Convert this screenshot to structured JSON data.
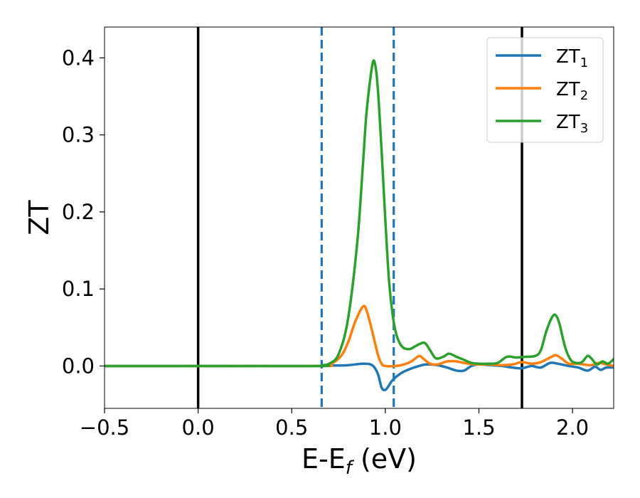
{
  "chart_data": {
    "type": "line",
    "title": "",
    "xlabel": {
      "main": "E-E",
      "sub": "f",
      "rest": " (eV)"
    },
    "ylabel": "ZT",
    "xlim": [
      -0.5,
      2.22
    ],
    "ylim": [
      -0.055,
      0.44
    ],
    "xticks": [
      -0.5,
      0.0,
      0.5,
      1.0,
      1.5,
      2.0
    ],
    "xtick_labels": [
      "−0.5",
      "0.0",
      "0.5",
      "1.0",
      "1.5",
      "2.0"
    ],
    "yticks": [
      0.0,
      0.1,
      0.2,
      0.3,
      0.4
    ],
    "ytick_labels": [
      "0.0",
      "0.1",
      "0.2",
      "0.3",
      "0.4"
    ],
    "grid": false,
    "legend_position": "top-right",
    "vlines": [
      {
        "x": 0.0,
        "style": "solid",
        "color": "#000000"
      },
      {
        "x": 1.73,
        "style": "solid",
        "color": "#000000"
      },
      {
        "x": 0.66,
        "style": "dashed",
        "color": "#1f77b4"
      },
      {
        "x": 1.045,
        "style": "dashed",
        "color": "#1f77b4"
      }
    ],
    "series": [
      {
        "name": {
          "main": "ZT",
          "sub": "1"
        },
        "color": "#1f77b4",
        "points": [
          [
            -0.5,
            0
          ],
          [
            0.6,
            0
          ],
          [
            0.7,
            0.0005
          ],
          [
            0.8,
            0.001
          ],
          [
            0.88,
            0.003
          ],
          [
            0.93,
            0.001
          ],
          [
            0.96,
            -0.01
          ],
          [
            0.98,
            -0.028
          ],
          [
            1.0,
            -0.031
          ],
          [
            1.02,
            -0.025
          ],
          [
            1.04,
            -0.018
          ],
          [
            1.08,
            -0.01
          ],
          [
            1.12,
            -0.005
          ],
          [
            1.18,
            0.0
          ],
          [
            1.22,
            0.002
          ],
          [
            1.28,
            0.001
          ],
          [
            1.33,
            -0.002
          ],
          [
            1.38,
            -0.006
          ],
          [
            1.42,
            -0.006
          ],
          [
            1.46,
            0.0
          ],
          [
            1.5,
            0.002
          ],
          [
            1.56,
            0.001
          ],
          [
            1.62,
            0.0
          ],
          [
            1.68,
            -0.002
          ],
          [
            1.73,
            -0.003
          ],
          [
            1.78,
            0.0
          ],
          [
            1.83,
            -0.002
          ],
          [
            1.88,
            0.004
          ],
          [
            1.92,
            0.003
          ],
          [
            1.98,
            0.0
          ],
          [
            2.03,
            -0.002
          ],
          [
            2.08,
            -0.006
          ],
          [
            2.12,
            -0.001
          ],
          [
            2.15,
            -0.005
          ],
          [
            2.18,
            -0.002
          ],
          [
            2.22,
            -0.002
          ]
        ]
      },
      {
        "name": {
          "main": "ZT",
          "sub": "2"
        },
        "color": "#ff7f0e",
        "points": [
          [
            -0.5,
            0
          ],
          [
            0.6,
            0
          ],
          [
            0.7,
            0.002
          ],
          [
            0.76,
            0.012
          ],
          [
            0.8,
            0.03
          ],
          [
            0.84,
            0.058
          ],
          [
            0.88,
            0.077
          ],
          [
            0.9,
            0.072
          ],
          [
            0.93,
            0.045
          ],
          [
            0.96,
            0.015
          ],
          [
            0.98,
            0.003
          ],
          [
            1.0,
            0.0
          ],
          [
            1.05,
            0.0
          ],
          [
            1.1,
            0.002
          ],
          [
            1.14,
            0.006
          ],
          [
            1.18,
            0.013
          ],
          [
            1.2,
            0.01
          ],
          [
            1.24,
            0.003
          ],
          [
            1.28,
            0.002
          ],
          [
            1.33,
            0.006
          ],
          [
            1.38,
            0.006
          ],
          [
            1.42,
            0.004
          ],
          [
            1.48,
            0.002
          ],
          [
            1.55,
            0.002
          ],
          [
            1.62,
            0.001
          ],
          [
            1.68,
            0.002
          ],
          [
            1.73,
            0.005
          ],
          [
            1.78,
            0.003
          ],
          [
            1.83,
            0.005
          ],
          [
            1.88,
            0.011
          ],
          [
            1.91,
            0.014
          ],
          [
            1.94,
            0.01
          ],
          [
            1.98,
            0.003
          ],
          [
            2.02,
            0.003
          ],
          [
            2.06,
            0.002
          ],
          [
            2.1,
            0.001
          ],
          [
            2.14,
            0.004
          ],
          [
            2.18,
            0.002
          ],
          [
            2.22,
            0.0
          ]
        ]
      },
      {
        "name": {
          "main": "ZT",
          "sub": "3"
        },
        "color": "#2ca02c",
        "points": [
          [
            -0.5,
            0
          ],
          [
            0.6,
            0
          ],
          [
            0.66,
            0.001
          ],
          [
            0.7,
            0.003
          ],
          [
            0.75,
            0.015
          ],
          [
            0.8,
            0.06
          ],
          [
            0.85,
            0.16
          ],
          [
            0.88,
            0.26
          ],
          [
            0.9,
            0.33
          ],
          [
            0.93,
            0.39
          ],
          [
            0.945,
            0.392
          ],
          [
            0.96,
            0.36
          ],
          [
            0.98,
            0.28
          ],
          [
            1.0,
            0.19
          ],
          [
            1.02,
            0.11
          ],
          [
            1.04,
            0.065
          ],
          [
            1.06,
            0.04
          ],
          [
            1.09,
            0.025
          ],
          [
            1.13,
            0.022
          ],
          [
            1.17,
            0.027
          ],
          [
            1.21,
            0.03
          ],
          [
            1.24,
            0.02
          ],
          [
            1.27,
            0.01
          ],
          [
            1.31,
            0.012
          ],
          [
            1.34,
            0.016
          ],
          [
            1.38,
            0.012
          ],
          [
            1.42,
            0.008
          ],
          [
            1.46,
            0.004
          ],
          [
            1.5,
            0.003
          ],
          [
            1.55,
            0.003
          ],
          [
            1.6,
            0.004
          ],
          [
            1.65,
            0.012
          ],
          [
            1.7,
            0.011
          ],
          [
            1.75,
            0.012
          ],
          [
            1.8,
            0.013
          ],
          [
            1.83,
            0.02
          ],
          [
            1.86,
            0.045
          ],
          [
            1.89,
            0.063
          ],
          [
            1.91,
            0.066
          ],
          [
            1.93,
            0.055
          ],
          [
            1.96,
            0.025
          ],
          [
            1.99,
            0.008
          ],
          [
            2.02,
            0.004
          ],
          [
            2.05,
            0.005
          ],
          [
            2.08,
            0.013
          ],
          [
            2.1,
            0.01
          ],
          [
            2.13,
            0.002
          ],
          [
            2.16,
            0.006
          ],
          [
            2.19,
            0.003
          ],
          [
            2.22,
            0.009
          ]
        ]
      }
    ]
  }
}
